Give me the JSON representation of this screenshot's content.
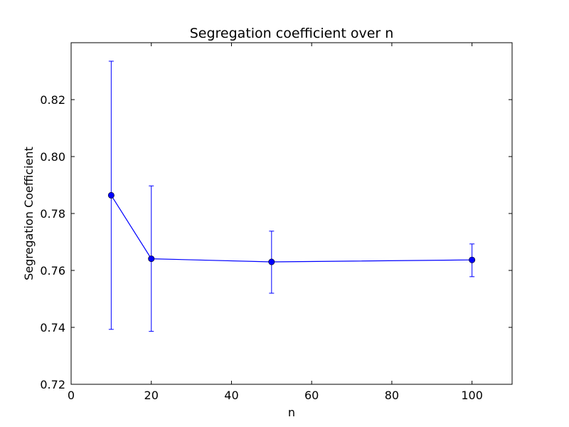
{
  "chart_data": {
    "type": "line",
    "title": "Segregation coefficient over n",
    "xlabel": "n",
    "ylabel": "Segregation Coefficient",
    "xlim": [
      0,
      110
    ],
    "ylim": [
      0.72,
      0.84
    ],
    "xticks": [
      0,
      20,
      40,
      60,
      80,
      100
    ],
    "xtick_labels": [
      "0",
      "20",
      "40",
      "60",
      "80",
      "100"
    ],
    "yticks": [
      0.72,
      0.74,
      0.76,
      0.78,
      0.8,
      0.82
    ],
    "ytick_labels": [
      "0.72",
      "0.74",
      "0.76",
      "0.78",
      "0.80",
      "0.82"
    ],
    "grid": false,
    "series": [
      {
        "color": "#0000ff",
        "x": [
          10,
          20,
          50,
          100
        ],
        "y": [
          0.7864,
          0.7641,
          0.763,
          0.7637
        ],
        "yerr_low": [
          0.7393,
          0.7386,
          0.752,
          0.7578
        ],
        "yerr_high": [
          0.8335,
          0.7897,
          0.7738,
          0.7693
        ]
      }
    ]
  }
}
